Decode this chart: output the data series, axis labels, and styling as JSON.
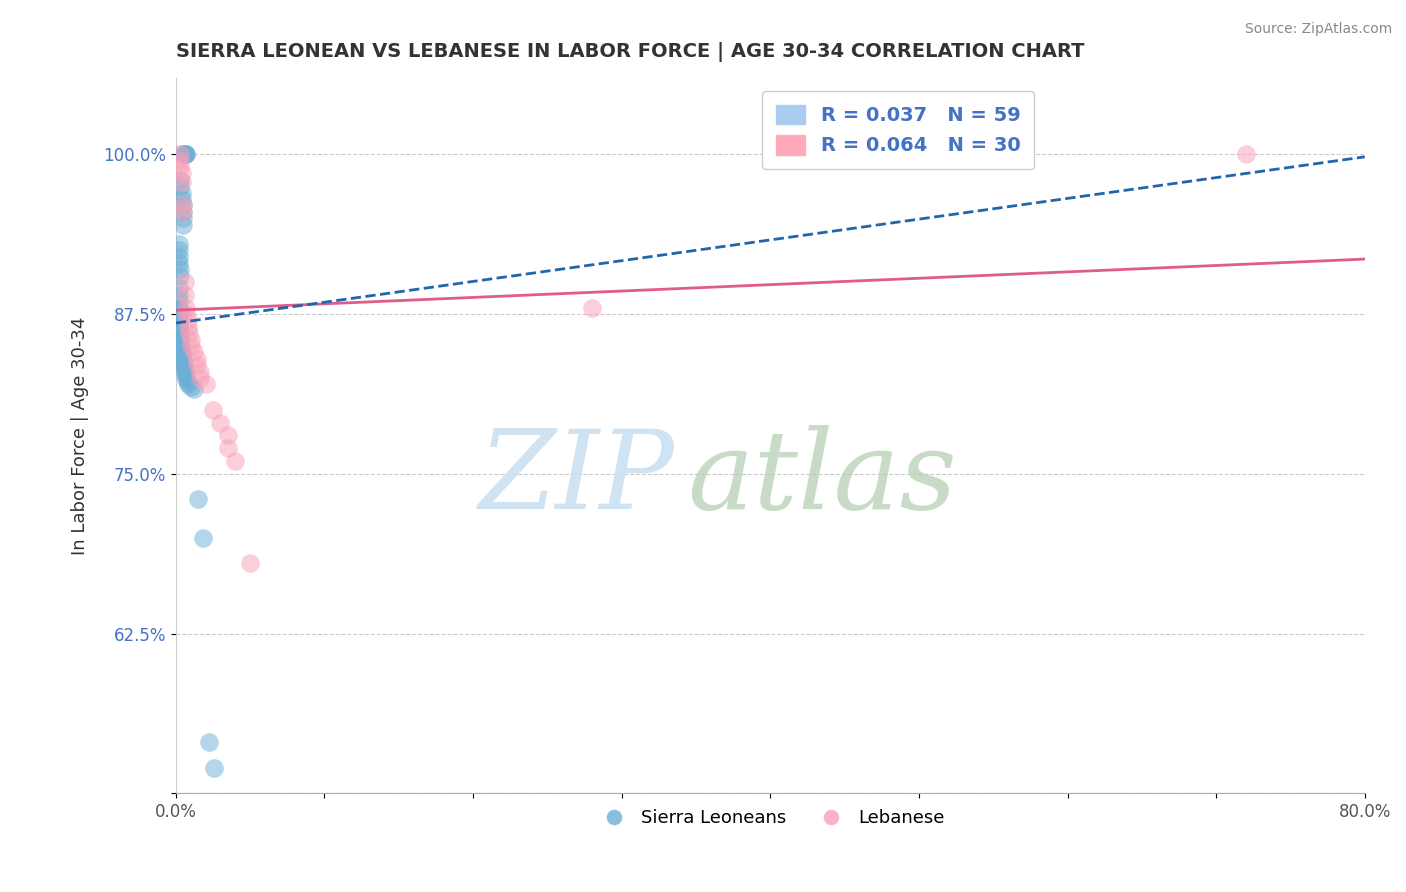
{
  "title": "SIERRA LEONEAN VS LEBANESE IN LABOR FORCE | AGE 30-34 CORRELATION CHART",
  "source": "Source: ZipAtlas.com",
  "ylabel": "In Labor Force | Age 30-34",
  "xlim": [
    0.0,
    0.8
  ],
  "ylim": [
    0.5,
    1.06
  ],
  "xticks": [
    0.0,
    0.1,
    0.2,
    0.3,
    0.4,
    0.5,
    0.6,
    0.7,
    0.8
  ],
  "xticklabels": [
    "0.0%",
    "",
    "",
    "",
    "",
    "",
    "",
    "",
    "80.0%"
  ],
  "yticks": [
    0.5,
    0.625,
    0.75,
    0.875,
    1.0
  ],
  "yticklabels": [
    "",
    "62.5%",
    "75.0%",
    "87.5%",
    "100.0%"
  ],
  "sierra_color": "#6baed6",
  "lebanese_color": "#fa9fb5",
  "sierra_trend_color": "#2166ac",
  "lebanese_trend_color": "#e05c8a",
  "watermark_zip": "ZIP",
  "watermark_atlas": "atlas",
  "sierra_trend_x": [
    0.0,
    0.8
  ],
  "sierra_trend_y": [
    0.868,
    0.998
  ],
  "lebanese_trend_x": [
    0.0,
    0.8
  ],
  "lebanese_trend_y": [
    0.878,
    0.918
  ],
  "sierra_x": [
    0.004,
    0.006,
    0.006,
    0.007,
    0.007,
    0.003,
    0.003,
    0.004,
    0.004,
    0.005,
    0.005,
    0.005,
    0.005,
    0.002,
    0.002,
    0.002,
    0.002,
    0.003,
    0.003,
    0.002,
    0.002,
    0.002,
    0.002,
    0.002,
    0.002,
    0.002,
    0.002,
    0.002,
    0.002,
    0.002,
    0.002,
    0.002,
    0.003,
    0.003,
    0.003,
    0.003,
    0.003,
    0.003,
    0.003,
    0.004,
    0.004,
    0.004,
    0.004,
    0.005,
    0.005,
    0.005,
    0.006,
    0.006,
    0.006,
    0.007,
    0.007,
    0.008,
    0.008,
    0.01,
    0.012,
    0.015,
    0.018,
    0.022,
    0.026
  ],
  "sierra_y": [
    1.0,
    1.0,
    1.0,
    1.0,
    1.0,
    0.98,
    0.975,
    0.97,
    0.965,
    0.96,
    0.955,
    0.95,
    0.945,
    0.93,
    0.925,
    0.92,
    0.915,
    0.91,
    0.905,
    0.895,
    0.89,
    0.885,
    0.88,
    0.878,
    0.876,
    0.874,
    0.872,
    0.87,
    0.868,
    0.866,
    0.864,
    0.862,
    0.86,
    0.858,
    0.856,
    0.854,
    0.852,
    0.85,
    0.848,
    0.846,
    0.844,
    0.842,
    0.84,
    0.838,
    0.836,
    0.834,
    0.832,
    0.83,
    0.828,
    0.826,
    0.824,
    0.822,
    0.82,
    0.818,
    0.816,
    0.73,
    0.7,
    0.54,
    0.52
  ],
  "lebanese_x": [
    0.72,
    0.003,
    0.003,
    0.003,
    0.004,
    0.004,
    0.005,
    0.005,
    0.006,
    0.006,
    0.007,
    0.007,
    0.008,
    0.008,
    0.009,
    0.01,
    0.01,
    0.012,
    0.014,
    0.014,
    0.016,
    0.016,
    0.02,
    0.025,
    0.03,
    0.035,
    0.035,
    0.04,
    0.05,
    0.28
  ],
  "lebanese_y": [
    1.0,
    1.0,
    0.995,
    0.99,
    0.985,
    0.978,
    0.96,
    0.955,
    0.9,
    0.89,
    0.88,
    0.875,
    0.87,
    0.865,
    0.86,
    0.855,
    0.85,
    0.845,
    0.84,
    0.835,
    0.83,
    0.825,
    0.82,
    0.8,
    0.79,
    0.78,
    0.77,
    0.76,
    0.68,
    0.88
  ]
}
